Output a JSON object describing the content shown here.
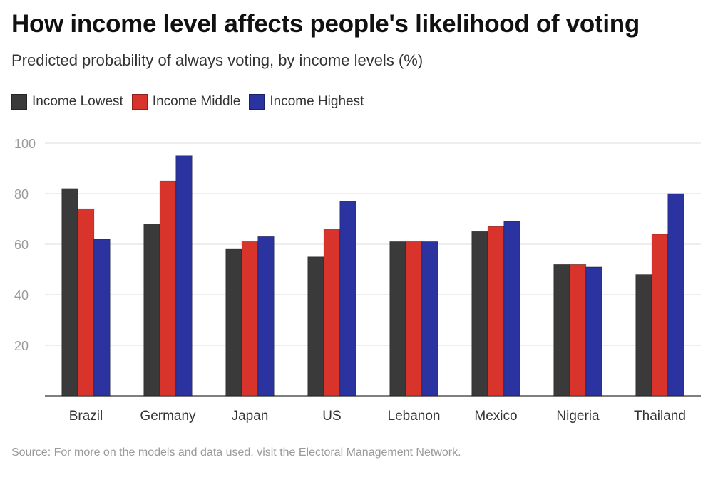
{
  "chart_data": {
    "type": "bar",
    "title": "How income level affects people's likelihood of voting",
    "subtitle": "Predicted probability of always voting, by income levels (%)",
    "categories": [
      "Brazil",
      "Germany",
      "Japan",
      "US",
      "Lebanon",
      "Mexico",
      "Nigeria",
      "Thailand"
    ],
    "series": [
      {
        "name": "Income Lowest",
        "color": "#3a3a3a",
        "values": [
          82,
          68,
          58,
          55,
          61,
          65,
          52,
          48
        ]
      },
      {
        "name": "Income Middle",
        "color": "#d9342b",
        "values": [
          74,
          85,
          61,
          66,
          61,
          67,
          52,
          64
        ]
      },
      {
        "name": "Income Highest",
        "color": "#2a33a0",
        "values": [
          62,
          95,
          63,
          77,
          61,
          69,
          51,
          80
        ]
      }
    ],
    "yticks": [
      20,
      40,
      60,
      80,
      100
    ],
    "ylim": [
      0,
      100
    ],
    "xlabel": "",
    "ylabel": "",
    "grid": true,
    "legend_position": "top-left",
    "source": "Source: For more on the models and data used, visit the Electoral Management Network."
  }
}
